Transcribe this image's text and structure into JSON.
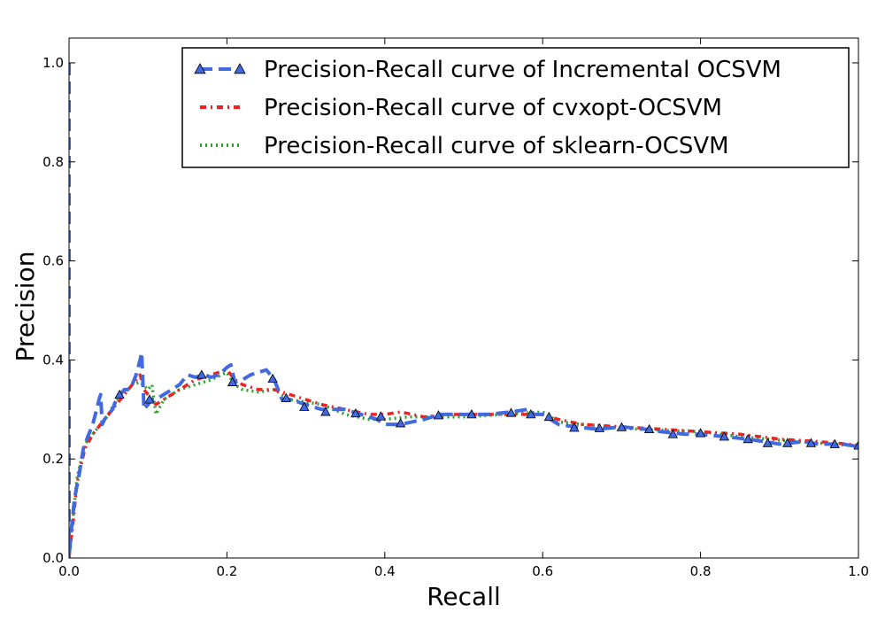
{
  "chart_data": {
    "type": "line",
    "title": "",
    "xlabel": "Recall",
    "ylabel": "Precision",
    "xlim": [
      0.0,
      1.0
    ],
    "ylim": [
      0.0,
      1.05
    ],
    "xticks": [
      "0.0",
      "0.2",
      "0.4",
      "0.6",
      "0.8",
      "1.0"
    ],
    "yticks": [
      "0.0",
      "0.2",
      "0.4",
      "0.6",
      "0.8",
      "1.0"
    ],
    "grid": false,
    "legend_position": "top-right",
    "series": [
      {
        "name": "Precision-Recall curve of Incremental OCSVM",
        "color": "#4169e1",
        "style": "dashed",
        "marker": "triangle",
        "x": [
          0.0,
          0.0,
          0.003,
          0.007,
          0.013,
          0.018,
          0.025,
          0.03,
          0.035,
          0.038,
          0.04,
          0.042,
          0.045,
          0.05,
          0.055,
          0.06,
          0.065,
          0.07,
          0.075,
          0.08,
          0.085,
          0.09,
          0.092,
          0.095,
          0.1,
          0.105,
          0.11,
          0.12,
          0.13,
          0.14,
          0.15,
          0.16,
          0.17,
          0.18,
          0.19,
          0.2,
          0.205,
          0.21,
          0.22,
          0.23,
          0.24,
          0.25,
          0.26,
          0.27,
          0.28,
          0.3,
          0.32,
          0.35,
          0.37,
          0.39,
          0.4,
          0.42,
          0.45,
          0.47,
          0.5,
          0.53,
          0.56,
          0.58,
          0.59,
          0.6,
          0.61,
          0.62,
          0.64,
          0.67,
          0.7,
          0.73,
          0.75,
          0.78,
          0.8,
          0.83,
          0.86,
          0.88,
          0.9,
          0.93,
          0.95,
          0.98,
          1.0
        ],
        "y": [
          1.0,
          0.0,
          0.06,
          0.12,
          0.17,
          0.22,
          0.25,
          0.27,
          0.3,
          0.32,
          0.33,
          0.27,
          0.28,
          0.29,
          0.3,
          0.32,
          0.33,
          0.34,
          0.34,
          0.35,
          0.37,
          0.4,
          0.415,
          0.3,
          0.31,
          0.32,
          0.32,
          0.33,
          0.34,
          0.35,
          0.37,
          0.365,
          0.37,
          0.365,
          0.37,
          0.385,
          0.39,
          0.355,
          0.36,
          0.37,
          0.375,
          0.38,
          0.36,
          0.32,
          0.32,
          0.31,
          0.3,
          0.3,
          0.29,
          0.28,
          0.27,
          0.27,
          0.28,
          0.29,
          0.29,
          0.29,
          0.295,
          0.3,
          0.29,
          0.29,
          0.28,
          0.27,
          0.265,
          0.26,
          0.265,
          0.26,
          0.255,
          0.25,
          0.25,
          0.245,
          0.24,
          0.235,
          0.23,
          0.235,
          0.23,
          0.23,
          0.225
        ],
        "markers_x": [
          0.064,
          0.102,
          0.168,
          0.207,
          0.258,
          0.275,
          0.298,
          0.325,
          0.363,
          0.395,
          0.42,
          0.468,
          0.51,
          0.56,
          0.585,
          0.608,
          0.64,
          0.672,
          0.7,
          0.735,
          0.765,
          0.8,
          0.83,
          0.86,
          0.885,
          0.91,
          0.94,
          0.97,
          1.0
        ],
        "markers_y": [
          0.33,
          0.32,
          0.37,
          0.355,
          0.362,
          0.323,
          0.305,
          0.295,
          0.292,
          0.286,
          0.272,
          0.288,
          0.29,
          0.293,
          0.29,
          0.285,
          0.263,
          0.262,
          0.264,
          0.26,
          0.25,
          0.252,
          0.245,
          0.24,
          0.232,
          0.232,
          0.232,
          0.23,
          0.227
        ]
      },
      {
        "name": "Precision-Recall curve of cvxopt-OCSVM",
        "color": "#ee2222",
        "style": "dashdot",
        "marker": "none",
        "x": [
          0.0,
          0.005,
          0.01,
          0.02,
          0.03,
          0.04,
          0.05,
          0.06,
          0.07,
          0.08,
          0.09,
          0.095,
          0.1,
          0.11,
          0.12,
          0.14,
          0.16,
          0.18,
          0.2,
          0.21,
          0.22,
          0.24,
          0.26,
          0.28,
          0.3,
          0.32,
          0.35,
          0.38,
          0.4,
          0.42,
          0.45,
          0.48,
          0.5,
          0.55,
          0.6,
          0.62,
          0.65,
          0.7,
          0.75,
          0.8,
          0.85,
          0.9,
          0.95,
          1.0
        ],
        "y": [
          0.0,
          0.07,
          0.15,
          0.22,
          0.25,
          0.27,
          0.29,
          0.31,
          0.33,
          0.35,
          0.37,
          0.34,
          0.33,
          0.31,
          0.32,
          0.34,
          0.36,
          0.37,
          0.38,
          0.36,
          0.35,
          0.34,
          0.34,
          0.33,
          0.32,
          0.31,
          0.3,
          0.29,
          0.29,
          0.295,
          0.285,
          0.29,
          0.29,
          0.29,
          0.29,
          0.28,
          0.27,
          0.265,
          0.26,
          0.255,
          0.25,
          0.24,
          0.235,
          0.228
        ]
      },
      {
        "name": "Precision-Recall curve of sklearn-OCSVM",
        "color": "#2ca02c",
        "style": "dotted",
        "marker": "none",
        "x": [
          0.0,
          0.005,
          0.01,
          0.02,
          0.03,
          0.04,
          0.05,
          0.06,
          0.07,
          0.08,
          0.09,
          0.1,
          0.105,
          0.11,
          0.12,
          0.14,
          0.16,
          0.18,
          0.2,
          0.21,
          0.22,
          0.24,
          0.26,
          0.28,
          0.3,
          0.32,
          0.35,
          0.38,
          0.4,
          0.43,
          0.45,
          0.48,
          0.5,
          0.55,
          0.6,
          0.62,
          0.65,
          0.7,
          0.75,
          0.8,
          0.85,
          0.9,
          0.95,
          1.0
        ],
        "y": [
          0.0,
          0.08,
          0.16,
          0.23,
          0.25,
          0.27,
          0.29,
          0.32,
          0.33,
          0.35,
          0.355,
          0.34,
          0.35,
          0.29,
          0.32,
          0.34,
          0.35,
          0.36,
          0.375,
          0.35,
          0.34,
          0.335,
          0.34,
          0.32,
          0.315,
          0.31,
          0.29,
          0.28,
          0.28,
          0.285,
          0.285,
          0.285,
          0.285,
          0.29,
          0.295,
          0.275,
          0.27,
          0.262,
          0.258,
          0.255,
          0.245,
          0.238,
          0.232,
          0.226
        ]
      }
    ]
  }
}
